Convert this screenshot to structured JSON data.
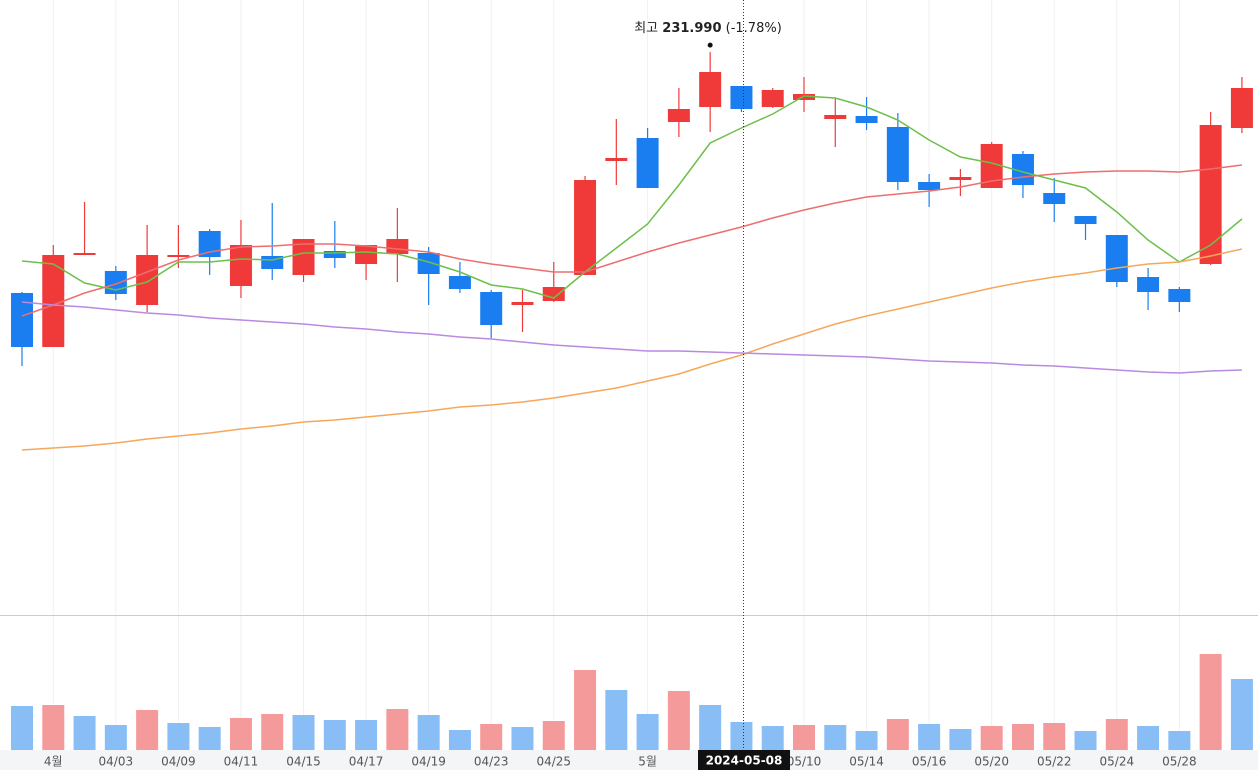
{
  "chart_data": {
    "type": "candlestick",
    "categories": [
      null,
      "4월",
      null,
      "04/03",
      null,
      "04/09",
      null,
      "04/11",
      null,
      "04/15",
      null,
      "04/17",
      null,
      "04/19",
      null,
      "04/23",
      null,
      "04/25",
      null,
      null,
      "5월",
      null,
      null,
      null,
      null,
      "05/10",
      null,
      "05/14",
      null,
      "05/16",
      null,
      "05/20",
      null,
      "05/22",
      null,
      "05/24",
      null,
      "05/28",
      null,
      null
    ],
    "open": [
      207.9,
      202.5,
      211.7,
      210.1,
      206.7,
      211.5,
      214.1,
      208.6,
      211.6,
      209.7,
      212.1,
      210.8,
      211.8,
      211.9,
      209.6,
      208.0,
      206.7,
      207.1,
      209.7,
      221.1,
      223.4,
      225.0,
      226.5,
      228.6,
      226.5,
      227.2,
      225.3,
      225.6,
      224.5,
      219.0,
      219.2,
      218.4,
      221.8,
      217.9,
      215.6,
      213.7,
      209.5,
      208.3,
      210.8,
      224.4
    ],
    "high": [
      208.0,
      212.7,
      217.0,
      210.6,
      214.7,
      214.7,
      214.3,
      215.2,
      216.9,
      213.3,
      215.1,
      212.7,
      216.4,
      212.5,
      211.0,
      208.2,
      208.2,
      211.0,
      219.6,
      225.3,
      224.4,
      228.4,
      231.99,
      228.6,
      228.4,
      229.5,
      227.4,
      227.5,
      225.9,
      219.8,
      220.3,
      223.0,
      222.1,
      219.4,
      215.6,
      213.7,
      210.4,
      208.5,
      226.0,
      229.5
    ],
    "low": [
      200.6,
      202.5,
      211.7,
      207.2,
      206.0,
      210.4,
      209.7,
      207.4,
      209.2,
      209.0,
      210.4,
      209.2,
      209.0,
      206.7,
      207.9,
      203.4,
      204.0,
      207.0,
      209.7,
      218.7,
      218.4,
      223.5,
      224.0,
      226.0,
      226.4,
      226.0,
      222.5,
      224.2,
      218.2,
      216.5,
      217.6,
      218.4,
      217.4,
      215.0,
      213.2,
      208.5,
      206.2,
      206.0,
      210.7,
      223.9
    ],
    "close": [
      202.5,
      211.7,
      211.9,
      207.8,
      211.7,
      211.7,
      211.5,
      212.7,
      210.3,
      213.3,
      211.4,
      212.7,
      213.3,
      209.8,
      208.3,
      204.7,
      207.0,
      208.5,
      219.2,
      221.4,
      218.4,
      226.3,
      230.0,
      226.3,
      228.2,
      227.8,
      225.7,
      224.9,
      219.0,
      218.2,
      219.5,
      222.8,
      218.7,
      216.8,
      214.8,
      209.0,
      208.0,
      207.0,
      224.7,
      228.4
    ],
    "up_color": "#f03a3a",
    "down_color": "#1a7ef0",
    "ylim": [
      175.7,
      237.2
    ],
    "series": [
      {
        "color": "#6cc04a",
        "values": [
          211.1,
          210.8,
          208.9,
          208.2,
          209.0,
          211.0,
          211.0,
          211.3,
          211.2,
          211.9,
          211.9,
          212.0,
          211.8,
          211.0,
          210.0,
          208.7,
          208.3,
          207.4,
          210.0,
          212.4,
          214.8,
          218.7,
          222.9,
          224.4,
          225.8,
          227.6,
          227.4,
          226.5,
          225.2,
          223.2,
          221.5,
          220.9,
          220.0,
          219.2,
          218.4,
          216.0,
          213.2,
          211.0,
          212.7,
          215.3
        ]
      },
      {
        "color": "#ee6e6e",
        "values": [
          205.6,
          206.7,
          207.9,
          208.8,
          210.0,
          211.2,
          212.0,
          212.5,
          212.6,
          212.8,
          212.8,
          212.6,
          212.3,
          212.0,
          211.3,
          210.8,
          210.4,
          210.0,
          210.0,
          211.0,
          212.0,
          212.9,
          213.7,
          214.5,
          215.4,
          216.2,
          216.9,
          217.5,
          217.8,
          218.1,
          218.5,
          219.1,
          219.5,
          219.8,
          220.0,
          220.1,
          220.1,
          220.0,
          220.3,
          220.7
        ]
      },
      {
        "color": "#f5a85a",
        "values": [
          192.2,
          192.4,
          192.6,
          192.9,
          193.3,
          193.6,
          193.9,
          194.3,
          194.6,
          195.0,
          195.2,
          195.5,
          195.8,
          196.1,
          196.5,
          196.7,
          197.0,
          197.4,
          197.9,
          198.4,
          199.1,
          199.8,
          200.8,
          201.7,
          202.8,
          203.8,
          204.8,
          205.6,
          206.3,
          207.0,
          207.7,
          208.4,
          209.0,
          209.5,
          209.9,
          210.4,
          210.8,
          211.0,
          211.6,
          212.3
        ]
      },
      {
        "color": "#b98ae0",
        "values": [
          207.0,
          206.7,
          206.5,
          206.2,
          205.9,
          205.7,
          205.4,
          205.2,
          205.0,
          204.8,
          204.5,
          204.3,
          204.0,
          203.8,
          203.5,
          203.3,
          203.0,
          202.7,
          202.5,
          202.3,
          202.1,
          202.1,
          202.0,
          201.9,
          201.8,
          201.7,
          201.6,
          201.5,
          201.3,
          201.1,
          201.0,
          200.9,
          200.7,
          200.6,
          200.4,
          200.2,
          200.0,
          199.9,
          200.1,
          200.2
        ]
      }
    ],
    "volume": {
      "type": "bar",
      "values": [
        44,
        45,
        34,
        25,
        40,
        27,
        23,
        32,
        36,
        35,
        30,
        30,
        41,
        35,
        20,
        26,
        23,
        29,
        80,
        60,
        36,
        59,
        45,
        28,
        24,
        25,
        25,
        19,
        31,
        26,
        21,
        24,
        26,
        27,
        19,
        31,
        24,
        19,
        96,
        71
      ],
      "ylim": [
        0,
        135
      ],
      "up_color": "#f59a9a",
      "down_color": "#88bdf5"
    },
    "annotation": {
      "prefix": "최고",
      "value": 231.99,
      "value_label": "231.990",
      "change": "(-1.78%)"
    },
    "crosshair_label": "2024-05-08"
  }
}
